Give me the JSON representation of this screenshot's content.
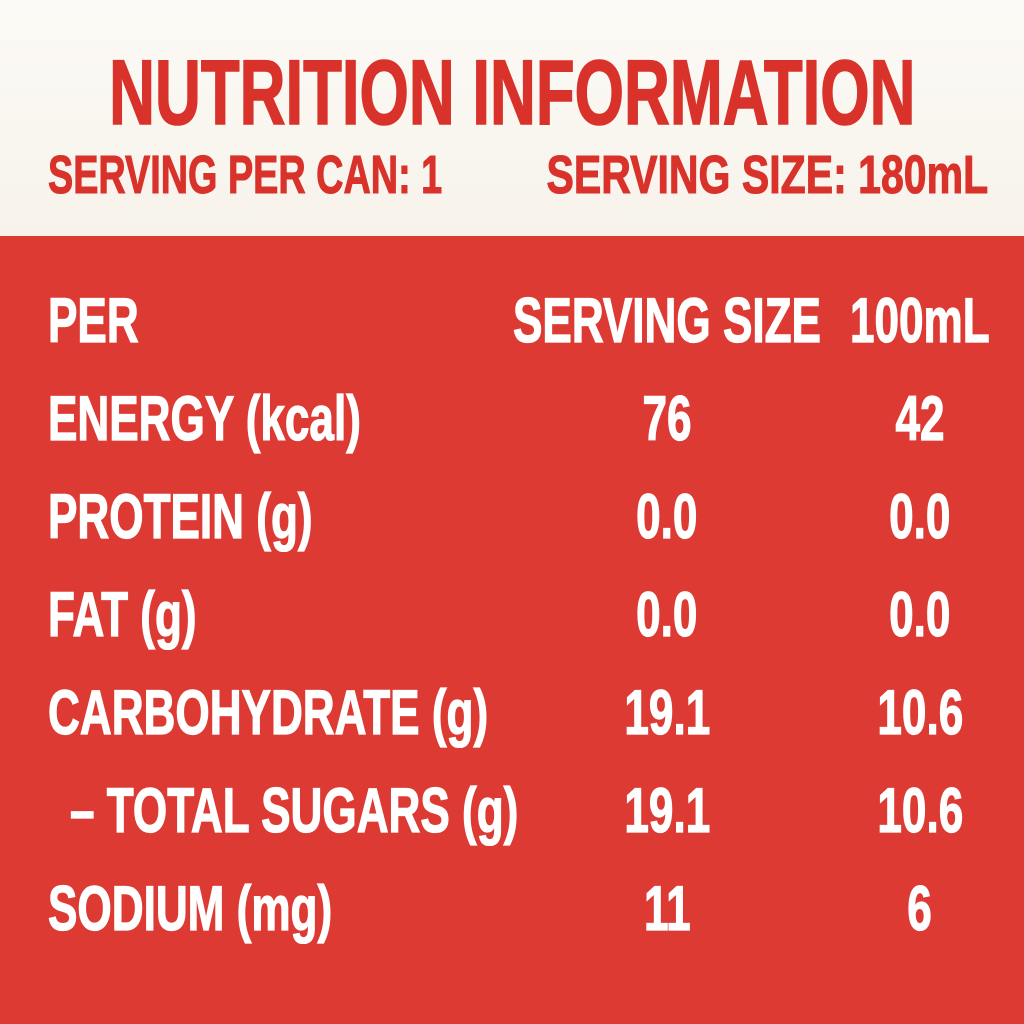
{
  "colors": {
    "red_background": "#dc3a33",
    "red_text": "#d8322b",
    "cream_background_top": "#fcfaf6",
    "cream_background_bottom": "#f7f3eb",
    "text_on_red": "#ffffff"
  },
  "header": {
    "title": "NUTRITION INFORMATION",
    "serving_per_can": "SERVING PER CAN: 1",
    "serving_size": "SERVING SIZE: 180mL"
  },
  "table": {
    "columns": {
      "per": "PER",
      "serving": "SERVING SIZE",
      "per_100ml": "100mL"
    },
    "rows": [
      {
        "label": "ENERGY (kcal)",
        "serving": "76",
        "per_100ml": "42"
      },
      {
        "label": "PROTEIN (g)",
        "serving": "0.0",
        "per_100ml": "0.0"
      },
      {
        "label": "FAT (g)",
        "serving": "0.0",
        "per_100ml": "0.0"
      },
      {
        "label": "CARBOHYDRATE (g)",
        "serving": "19.1",
        "per_100ml": "10.6"
      },
      {
        "label": "– TOTAL SUGARS (g)",
        "serving": "19.1",
        "per_100ml": "10.6",
        "indent": true
      },
      {
        "label": "SODIUM (mg)",
        "serving": "11",
        "per_100ml": "6"
      }
    ]
  }
}
